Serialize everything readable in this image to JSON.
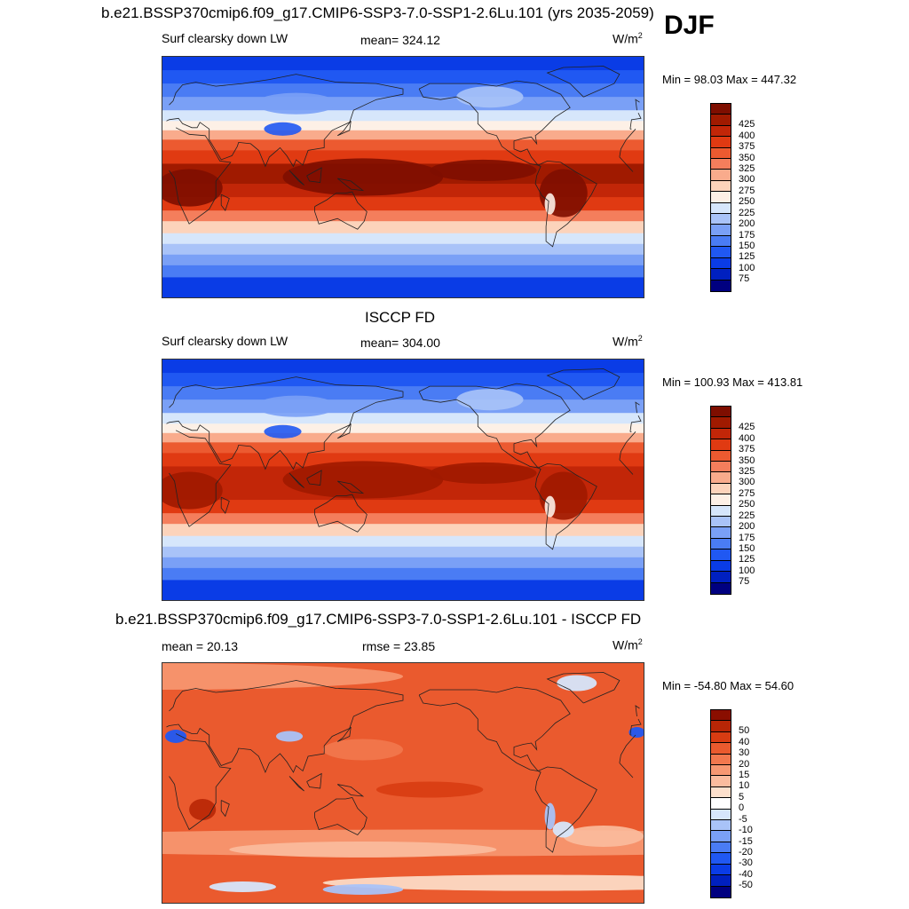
{
  "season": "DJF",
  "colors": {
    "abs_scale": [
      "#000080",
      "#0020c0",
      "#0a3ce6",
      "#2058f2",
      "#4a7cf4",
      "#7aa0f6",
      "#a9c3f8",
      "#d6e6fb",
      "#fdf0e6",
      "#fcd3bb",
      "#f9ab8c",
      "#f47e5c",
      "#ec5a30",
      "#e03a12",
      "#c22608",
      "#a01a00",
      "#7e0e00"
    ],
    "diff_scale": [
      "#000080",
      "#0020c0",
      "#0a3ce6",
      "#2058f2",
      "#4a7cf4",
      "#7aa0f6",
      "#a9c3f8",
      "#d6e6fb",
      "#ffffff",
      "#fde0cc",
      "#fbbc9e",
      "#f79872",
      "#f2784e",
      "#ea5a2e",
      "#d83c12",
      "#b82606",
      "#8a0e00"
    ]
  },
  "panels": [
    {
      "title": "b.e21.BSSP370cmip6.f09_g17.CMIP6-SSP3-7.0-SSP1-2.6Lu.101 (yrs 2035-2059)",
      "left": "Surf clearsky down LW",
      "center": "mean= 324.12",
      "units_base": "W/m",
      "units_exp": "2",
      "minmax": "Min =  98.03 Max = 447.32",
      "colorbar_labels": [
        "425",
        "400",
        "375",
        "350",
        "325",
        "300",
        "275",
        "250",
        "225",
        "200",
        "175",
        "150",
        "125",
        "100",
        "75"
      ],
      "map": {
        "kind": "abs",
        "intensity": 1.0
      }
    },
    {
      "title": "ISCCP FD",
      "left": "Surf clearsky down LW",
      "center": "mean= 304.00",
      "units_base": "W/m",
      "units_exp": "2",
      "minmax": "Min = 100.93 Max = 413.81",
      "colorbar_labels": [
        "425",
        "400",
        "375",
        "350",
        "325",
        "300",
        "275",
        "250",
        "225",
        "200",
        "175",
        "150",
        "125",
        "100",
        "75"
      ],
      "map": {
        "kind": "abs",
        "intensity": 0.82
      }
    },
    {
      "title": "b.e21.BSSP370cmip6.f09_g17.CMIP6-SSP3-7.0-SSP1-2.6Lu.101 - ISCCP FD",
      "left": "mean =  20.13",
      "center": "rmse =  23.85",
      "units_base": "W/m",
      "units_exp": "2",
      "minmax": "Min = -54.80 Max =  54.60",
      "colorbar_labels": [
        "50",
        "40",
        "30",
        "20",
        "15",
        "10",
        "5",
        "0",
        "-5",
        "-10",
        "-15",
        "-20",
        "-30",
        "-40",
        "-50"
      ],
      "map": {
        "kind": "diff",
        "intensity": 1.0
      }
    }
  ]
}
